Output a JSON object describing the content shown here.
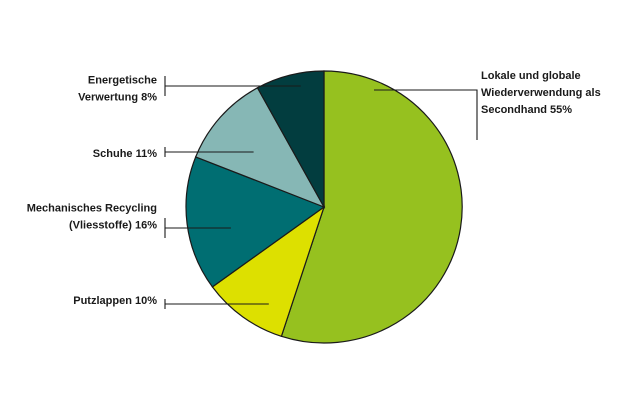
{
  "chart_data": {
    "type": "pie",
    "title": "",
    "slices": [
      {
        "label_lines": [
          "Lokale und globale",
          "Wiederverwendung als",
          "Secondhand  55%"
        ],
        "value": 55,
        "color": "#96c11f"
      },
      {
        "label_lines": [
          "Putzlappen  10%"
        ],
        "value": 10,
        "color": "#dde000"
      },
      {
        "label_lines": [
          "Mechanisches Recycling",
          "(Vliesstoffe)  16%"
        ],
        "value": 16,
        "color": "#006e72"
      },
      {
        "label_lines": [
          "Schuhe  11%"
        ],
        "value": 11,
        "color": "#86b7b5"
      },
      {
        "label_lines": [
          "Energetische",
          "Verwertung  8%"
        ],
        "value": 8,
        "color": "#023d3f"
      }
    ],
    "legend": "none"
  }
}
